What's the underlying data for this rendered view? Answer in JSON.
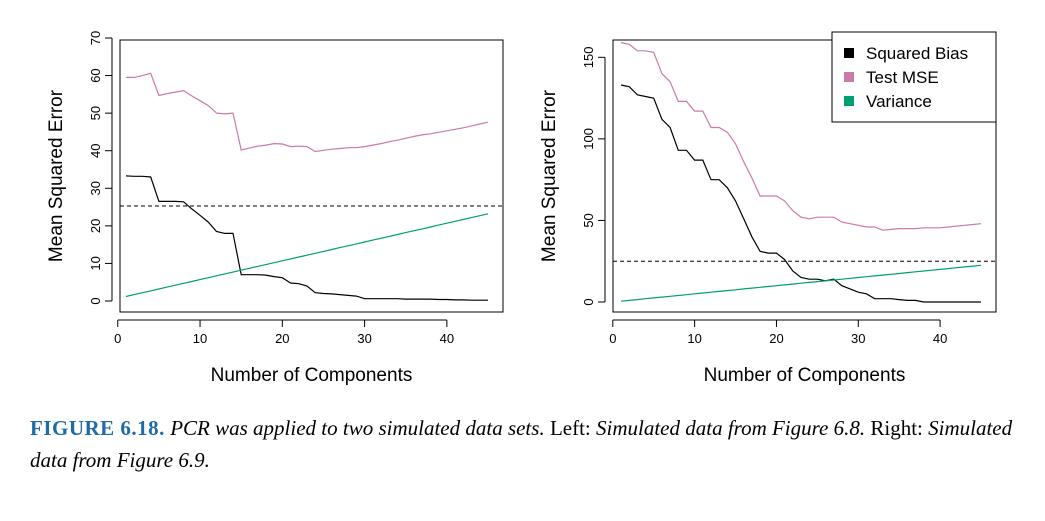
{
  "chart_data": [
    {
      "type": "line",
      "xlabel": "Number of Components",
      "ylabel": "Mean Squared Error",
      "xlim": [
        1,
        45
      ],
      "ylim": [
        0,
        70
      ],
      "xticks": [
        0,
        10,
        20,
        30,
        40
      ],
      "yticks": [
        0,
        10,
        20,
        30,
        40,
        50,
        60,
        70
      ],
      "hline": 25.3,
      "x": [
        1,
        2,
        3,
        4,
        5,
        6,
        7,
        8,
        9,
        10,
        11,
        12,
        13,
        14,
        15,
        16,
        17,
        18,
        19,
        20,
        21,
        22,
        23,
        24,
        25,
        26,
        27,
        28,
        29,
        30,
        31,
        32,
        33,
        34,
        35,
        36,
        37,
        38,
        39,
        40,
        41,
        42,
        43,
        44,
        45
      ],
      "series": [
        {
          "name": "Squared Bias",
          "color": "#000000",
          "values": [
            33.3,
            33.2,
            33.2,
            33.0,
            26.5,
            26.5,
            26.5,
            26.4,
            24.5,
            22.8,
            21.0,
            18.5,
            18.0,
            18.0,
            7.0,
            7.0,
            7.0,
            6.9,
            6.5,
            6.2,
            4.8,
            4.6,
            4.0,
            2.2,
            2.0,
            1.9,
            1.7,
            1.5,
            1.3,
            0.6,
            0.6,
            0.6,
            0.6,
            0.6,
            0.5,
            0.5,
            0.5,
            0.5,
            0.4,
            0.4,
            0.3,
            0.3,
            0.2,
            0.2,
            0.2
          ]
        },
        {
          "name": "Test MSE",
          "color": "#cc79a7",
          "values": [
            59.5,
            59.5,
            60.0,
            60.6,
            54.7,
            55.2,
            55.6,
            56.0,
            54.6,
            53.3,
            52.0,
            50.0,
            49.8,
            50.0,
            40.2,
            40.7,
            41.2,
            41.5,
            41.9,
            41.8,
            41.1,
            41.2,
            41.1,
            39.8,
            40.1,
            40.4,
            40.6,
            40.8,
            40.8,
            41.1,
            41.5,
            41.9,
            42.4,
            42.8,
            43.3,
            43.8,
            44.2,
            44.5,
            44.9,
            45.3,
            45.7,
            46.1,
            46.6,
            47.1,
            47.6
          ]
        },
        {
          "name": "Variance",
          "color": "#009e73",
          "values": [
            1.2,
            1.7,
            2.2,
            2.7,
            3.2,
            3.7,
            4.2,
            4.7,
            5.2,
            5.7,
            6.2,
            6.7,
            7.2,
            7.7,
            8.2,
            8.7,
            9.2,
            9.7,
            10.2,
            10.7,
            11.2,
            11.7,
            12.2,
            12.7,
            13.2,
            13.7,
            14.2,
            14.7,
            15.2,
            15.7,
            16.2,
            16.7,
            17.2,
            17.7,
            18.2,
            18.7,
            19.2,
            19.7,
            20.2,
            20.7,
            21.2,
            21.7,
            22.2,
            22.7,
            23.2
          ]
        }
      ]
    },
    {
      "type": "line",
      "xlabel": "Number of Components",
      "ylabel": "Mean Squared Error",
      "xlim": [
        1,
        45
      ],
      "ylim": [
        0,
        160
      ],
      "xticks": [
        0,
        10,
        20,
        30,
        40
      ],
      "yticks": [
        0,
        50,
        100,
        150
      ],
      "hline": 25,
      "legend": {
        "position": "top-right",
        "entries": [
          "Squared Bias",
          "Test MSE",
          "Variance"
        ]
      },
      "x": [
        1,
        2,
        3,
        4,
        5,
        6,
        7,
        8,
        9,
        10,
        11,
        12,
        13,
        14,
        15,
        16,
        17,
        18,
        19,
        20,
        21,
        22,
        23,
        24,
        25,
        26,
        27,
        28,
        29,
        30,
        31,
        32,
        33,
        34,
        35,
        36,
        37,
        38,
        39,
        40,
        41,
        42,
        43,
        44,
        45
      ],
      "series": [
        {
          "name": "Squared Bias",
          "color": "#000000",
          "values": [
            133,
            132,
            127,
            126,
            125,
            112,
            107,
            93,
            93,
            87,
            87,
            75,
            75,
            70,
            62,
            51,
            40,
            31,
            30,
            30,
            26,
            19,
            15,
            14,
            14,
            13,
            14,
            10,
            8,
            6,
            5,
            2,
            2,
            2,
            1.5,
            1,
            1,
            0,
            0,
            0,
            0,
            0,
            0,
            0,
            0
          ]
        },
        {
          "name": "Test MSE",
          "color": "#cc79a7",
          "values": [
            159,
            158,
            154,
            154,
            153,
            140,
            135,
            123,
            123,
            117,
            117,
            107,
            107,
            104,
            97,
            86,
            76,
            65,
            65,
            65,
            62,
            56,
            52,
            51,
            52,
            52,
            52,
            49,
            48,
            47,
            46,
            46,
            44,
            44.5,
            45,
            45,
            45,
            45.5,
            45.5,
            45.5,
            46,
            46.5,
            47,
            47.5,
            48
          ]
        },
        {
          "name": "Variance",
          "color": "#009e73",
          "values": [
            0.5,
            1.0,
            1.5,
            2.0,
            2.5,
            3.0,
            3.5,
            4.0,
            4.5,
            5.0,
            5.5,
            6.0,
            6.5,
            7.0,
            7.5,
            8.0,
            8.5,
            9.0,
            9.5,
            10.0,
            10.5,
            11.0,
            11.5,
            12.0,
            12.5,
            13.0,
            13.5,
            14.0,
            14.5,
            15.0,
            15.5,
            16.0,
            16.5,
            17.0,
            17.5,
            18.0,
            18.5,
            19.0,
            19.5,
            20.0,
            20.5,
            21.0,
            21.5,
            22.0,
            22.5
          ]
        }
      ]
    }
  ],
  "caption": {
    "label": "FIGURE 6.18.",
    "part1": "PCR was applied to two simulated data sets.",
    "left_label": "Left:",
    "part2": "Simulated data from Figure 6.8.",
    "right_label": "Right:",
    "part3": "Simulated data from Figure 6.9."
  }
}
